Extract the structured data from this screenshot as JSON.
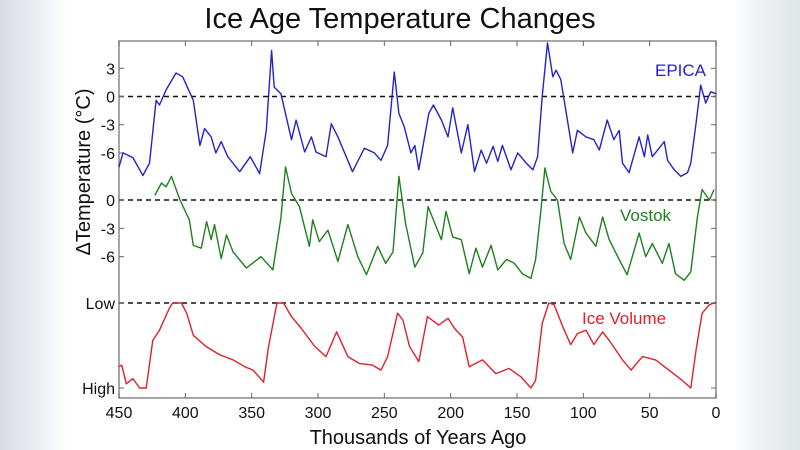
{
  "chart_data": {
    "type": "line",
    "title": "Ice Age Temperature Changes",
    "xlabel": "Thousands of Years Ago",
    "ylabel": "ΔTemperature (°C)",
    "xlim": [
      450,
      0
    ],
    "xticks": [
      450,
      400,
      350,
      300,
      250,
      200,
      150,
      100,
      50,
      0
    ],
    "grid": false,
    "panels": [
      {
        "name": "EPICA",
        "color": "#2323cc",
        "ylim": [
          -9,
          6
        ],
        "yticks": [
          3,
          0,
          -3,
          -6
        ],
        "ytick_labels": [
          "3",
          "0",
          "-3",
          "-6"
        ],
        "reference_line": 0,
        "points": [
          [
            450,
            -7.5
          ],
          [
            447,
            -6.0
          ],
          [
            439.5,
            -6.5
          ],
          [
            432,
            -8.4
          ],
          [
            427,
            -7.1
          ],
          [
            422,
            -0.4
          ],
          [
            419.5,
            -0.9
          ],
          [
            414.5,
            0.7
          ],
          [
            407,
            2.5
          ],
          [
            402,
            2.1
          ],
          [
            394,
            -0.4
          ],
          [
            389,
            -5.2
          ],
          [
            385.5,
            -3.4
          ],
          [
            380.5,
            -4.3
          ],
          [
            377,
            -6.0
          ],
          [
            373,
            -4.8
          ],
          [
            368,
            -6.4
          ],
          [
            359,
            -8.0
          ],
          [
            351,
            -6.4
          ],
          [
            344,
            -8.2
          ],
          [
            339,
            -3.6
          ],
          [
            335,
            4.9
          ],
          [
            333,
            1.0
          ],
          [
            328,
            0.3
          ],
          [
            320,
            -4.6
          ],
          [
            316.5,
            -2.5
          ],
          [
            310,
            -5.9
          ],
          [
            305,
            -4.3
          ],
          [
            301.5,
            -5.9
          ],
          [
            294,
            -6.4
          ],
          [
            290,
            -2.9
          ],
          [
            285,
            -4.3
          ],
          [
            274,
            -8.0
          ],
          [
            265,
            -5.5
          ],
          [
            257.5,
            -6.0
          ],
          [
            252.5,
            -6.8
          ],
          [
            247.5,
            -5.2
          ],
          [
            242.5,
            2.6
          ],
          [
            239,
            -1.8
          ],
          [
            235,
            -3.2
          ],
          [
            230,
            -6.0
          ],
          [
            227,
            -5.2
          ],
          [
            224,
            -7.8
          ],
          [
            216.5,
            -1.8
          ],
          [
            213,
            -0.9
          ],
          [
            207,
            -2.5
          ],
          [
            202,
            -4.3
          ],
          [
            198.5,
            -1.2
          ],
          [
            192,
            -6.0
          ],
          [
            187,
            -3.0
          ],
          [
            182,
            -8.0
          ],
          [
            177,
            -5.7
          ],
          [
            173,
            -7.1
          ],
          [
            168,
            -5.3
          ],
          [
            164.5,
            -6.9
          ],
          [
            161,
            -5.2
          ],
          [
            154.5,
            -7.8
          ],
          [
            149.5,
            -6.0
          ],
          [
            143,
            -7.1
          ],
          [
            138,
            -7.8
          ],
          [
            134.5,
            -6.4
          ],
          [
            131,
            0
          ],
          [
            127,
            5.7
          ],
          [
            123,
            2.1
          ],
          [
            120.5,
            2.8
          ],
          [
            117,
            1.8
          ],
          [
            112,
            -2.5
          ],
          [
            108,
            -6.0
          ],
          [
            104.5,
            -3.6
          ],
          [
            98,
            -4.3
          ],
          [
            92,
            -4.6
          ],
          [
            88,
            -5.7
          ],
          [
            82,
            -2.5
          ],
          [
            77,
            -4.6
          ],
          [
            73,
            -3.6
          ],
          [
            70.5,
            -7.1
          ],
          [
            65.5,
            -8.1
          ],
          [
            58,
            -4.3
          ],
          [
            54,
            -6.4
          ],
          [
            51.5,
            -4.1
          ],
          [
            48,
            -6.4
          ],
          [
            44,
            -5.7
          ],
          [
            39,
            -4.8
          ],
          [
            36.5,
            -6.8
          ],
          [
            31.5,
            -7.8
          ],
          [
            26.5,
            -8.5
          ],
          [
            21.5,
            -8.1
          ],
          [
            19,
            -7.1
          ],
          [
            15,
            -2.8
          ],
          [
            11.5,
            1.2
          ],
          [
            7.8,
            -0.7
          ],
          [
            4,
            0.5
          ],
          [
            0,
            0.3
          ]
        ]
      },
      {
        "name": "Vostok",
        "color": "#1f7f1f",
        "ylim": [
          -9,
          3
        ],
        "yticks": [
          0,
          -3,
          -6
        ],
        "ytick_labels": [
          "0",
          "-3",
          "-6"
        ],
        "reference_line": 0,
        "points": [
          [
            423,
            0.5
          ],
          [
            418,
            1.8
          ],
          [
            414.5,
            1.4
          ],
          [
            410.5,
            2.5
          ],
          [
            404,
            0
          ],
          [
            397,
            -2.1
          ],
          [
            394,
            -4.8
          ],
          [
            388,
            -5.1
          ],
          [
            384,
            -2.3
          ],
          [
            380.5,
            -4.2
          ],
          [
            378,
            -2.6
          ],
          [
            373,
            -6.2
          ],
          [
            369,
            -3.7
          ],
          [
            364,
            -5.5
          ],
          [
            354,
            -7.2
          ],
          [
            343,
            -6.0
          ],
          [
            334,
            -7.4
          ],
          [
            328,
            -1.9
          ],
          [
            324.5,
            3.5
          ],
          [
            320,
            0.7
          ],
          [
            314,
            -0.7
          ],
          [
            306.5,
            -4.9
          ],
          [
            304,
            -2.1
          ],
          [
            299,
            -4.4
          ],
          [
            292.5,
            -3.2
          ],
          [
            285,
            -6.5
          ],
          [
            277.5,
            -2.6
          ],
          [
            270,
            -6.0
          ],
          [
            263.5,
            -7.9
          ],
          [
            255,
            -4.9
          ],
          [
            249,
            -6.7
          ],
          [
            243.5,
            -5.5
          ],
          [
            239,
            2.5
          ],
          [
            234,
            -2.5
          ],
          [
            227,
            -7.1
          ],
          [
            221,
            -5.6
          ],
          [
            217,
            -0.7
          ],
          [
            207,
            -4.2
          ],
          [
            203.5,
            -1.2
          ],
          [
            198.5,
            -3.9
          ],
          [
            192,
            -4.2
          ],
          [
            186,
            -7.8
          ],
          [
            181,
            -5.1
          ],
          [
            176,
            -7.1
          ],
          [
            169.5,
            -4.8
          ],
          [
            164.5,
            -7.4
          ],
          [
            158,
            -6.3
          ],
          [
            152,
            -6.7
          ],
          [
            146,
            -7.8
          ],
          [
            139.5,
            -8.3
          ],
          [
            136,
            -6.3
          ],
          [
            132,
            -1.1
          ],
          [
            129,
            3.4
          ],
          [
            124.5,
            0.9
          ],
          [
            119.5,
            0
          ],
          [
            114.5,
            -4.6
          ],
          [
            109.5,
            -6.3
          ],
          [
            103,
            -1.8
          ],
          [
            98,
            -3.5
          ],
          [
            90.5,
            -4.9
          ],
          [
            85.5,
            -1.8
          ],
          [
            80.5,
            -4.2
          ],
          [
            73,
            -6.3
          ],
          [
            67,
            -7.9
          ],
          [
            58,
            -3.5
          ],
          [
            53,
            -6.0
          ],
          [
            48,
            -4.6
          ],
          [
            40.5,
            -6.7
          ],
          [
            35.5,
            -4.6
          ],
          [
            30.5,
            -7.8
          ],
          [
            24,
            -8.5
          ],
          [
            19,
            -7.6
          ],
          [
            14,
            -1.8
          ],
          [
            10.5,
            1.1
          ],
          [
            5,
            0
          ],
          [
            1.5,
            1.1
          ]
        ]
      },
      {
        "name": "Ice Volume",
        "color": "#e0202c",
        "ylim": [
          0,
          1
        ],
        "yticks": [
          1,
          0
        ],
        "ytick_labels": [
          "Low",
          "High"
        ],
        "inverted": true,
        "reference_line": 1,
        "points": [
          [
            450,
            0.25
          ],
          [
            448,
            0.27
          ],
          [
            444.5,
            0.05
          ],
          [
            439.5,
            0.11
          ],
          [
            434.5,
            0
          ],
          [
            429.5,
            0
          ],
          [
            424.5,
            0.56
          ],
          [
            419.5,
            0.68
          ],
          [
            412,
            0.94
          ],
          [
            409.5,
            1.0
          ],
          [
            403,
            1.0
          ],
          [
            399,
            0.88
          ],
          [
            394,
            0.62
          ],
          [
            384.5,
            0.49
          ],
          [
            374,
            0.39
          ],
          [
            364,
            0.33
          ],
          [
            355,
            0.25
          ],
          [
            349,
            0.21
          ],
          [
            341,
            0.07
          ],
          [
            337.5,
            0.47
          ],
          [
            331,
            1.0
          ],
          [
            326,
            1.0
          ],
          [
            320,
            0.84
          ],
          [
            312.5,
            0.7
          ],
          [
            302.5,
            0.49
          ],
          [
            294,
            0.37
          ],
          [
            286,
            0.66
          ],
          [
            277.5,
            0.37
          ],
          [
            269,
            0.29
          ],
          [
            259,
            0.27
          ],
          [
            252.5,
            0.21
          ],
          [
            247.5,
            0.37
          ],
          [
            240,
            0.88
          ],
          [
            236,
            0.8
          ],
          [
            231,
            0.49
          ],
          [
            224,
            0.31
          ],
          [
            217.5,
            0.84
          ],
          [
            209,
            0.74
          ],
          [
            202,
            0.82
          ],
          [
            197,
            0.7
          ],
          [
            191,
            0.6
          ],
          [
            186,
            0.25
          ],
          [
            176,
            0.33
          ],
          [
            166,
            0.17
          ],
          [
            156,
            0.23
          ],
          [
            147,
            0.13
          ],
          [
            139.5,
            0
          ],
          [
            136,
            0.09
          ],
          [
            131,
            0.76
          ],
          [
            126,
            1.0
          ],
          [
            122,
            0.98
          ],
          [
            115.5,
            0.72
          ],
          [
            109.5,
            0.51
          ],
          [
            104.5,
            0.64
          ],
          [
            98,
            0.68
          ],
          [
            92,
            0.51
          ],
          [
            85.5,
            0.66
          ],
          [
            80.5,
            0.56
          ],
          [
            70.5,
            0.33
          ],
          [
            64,
            0.21
          ],
          [
            55.5,
            0.37
          ],
          [
            45.5,
            0.33
          ],
          [
            35.5,
            0.21
          ],
          [
            25.5,
            0.09
          ],
          [
            19,
            0
          ],
          [
            15,
            0.45
          ],
          [
            10.5,
            0.88
          ],
          [
            5,
            0.98
          ],
          [
            1.5,
            1.0
          ]
        ]
      }
    ]
  }
}
